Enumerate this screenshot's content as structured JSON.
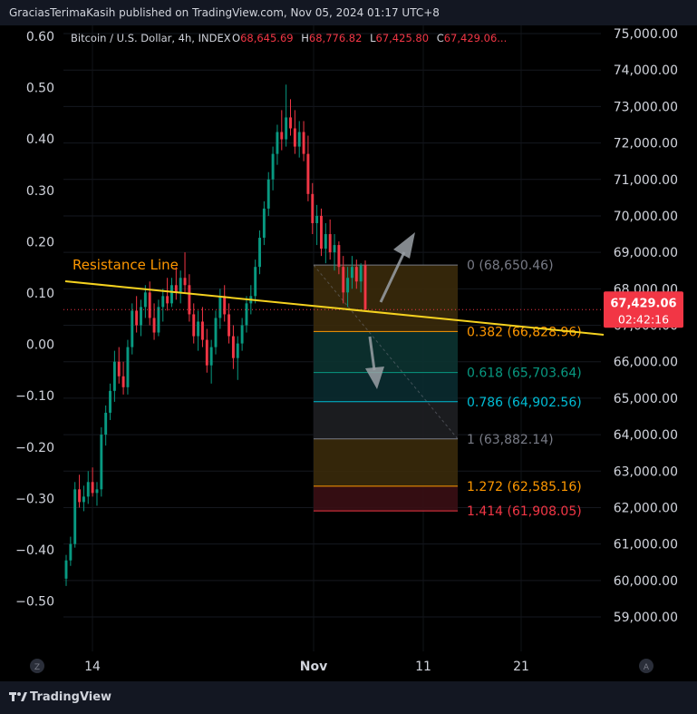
{
  "header": {
    "text": "GraciasTerimaKasih published on TradingView.com, Nov 05, 2024 01:17 UTC+8"
  },
  "symbol": {
    "name": "Bitcoin / U.S. Dollar, 4h, INDEX",
    "o_label": "O",
    "o_value": "68,645.69",
    "h_label": "H",
    "h_value": "68,776.82",
    "l_label": "L",
    "l_value": "67,425.80",
    "c_label": "C",
    "c_value": "67,429.06...",
    "value_color": "#f23645"
  },
  "footer": {
    "brand": "TradingView",
    "z_label": "Z",
    "a_label": "A"
  },
  "chart_data": {
    "type": "candlestick",
    "right_axis": {
      "ticks": [
        "75,000.00",
        "74,000.00",
        "73,000.00",
        "72,000.00",
        "71,000.00",
        "70,000.00",
        "69,000.00",
        "68,000.00",
        "67,000.00",
        "66,000.00",
        "65,000.00",
        "64,000.00",
        "63,000.00",
        "62,000.00",
        "61,000.00",
        "60,000.00",
        "59,000.00"
      ],
      "range": [
        58500,
        75200
      ]
    },
    "left_axis": {
      "ticks": [
        "0.60",
        "0.50",
        "0.40",
        "0.30",
        "0.20",
        "0.10",
        "0.00",
        "−0.10",
        "−0.20",
        "−0.30",
        "−0.40",
        "−0.50"
      ]
    },
    "x_ticks": [
      "14",
      "Nov",
      "11",
      "21"
    ],
    "last_price": {
      "price": "67,429.06",
      "countdown": "02:42:16",
      "value": 67429.06,
      "color": "#f23645"
    },
    "resistance_line": {
      "label": "Resistance Line",
      "color": "#f5d21f",
      "label_color": "#ff9800"
    },
    "fib_levels": [
      {
        "ratio": "0",
        "price": "68,650.46",
        "text": "0 (68,650.46)",
        "value": 68650.46,
        "color": "#787b86"
      },
      {
        "ratio": "0.382",
        "price": "66,828.96",
        "text": "0.382 (66,828.96)",
        "value": 66828.96,
        "color": "#ff9800"
      },
      {
        "ratio": "0.618",
        "price": "65,703.64",
        "text": "0.618 (65,703.64)",
        "value": 65703.64,
        "color": "#089981"
      },
      {
        "ratio": "0.786",
        "price": "64,902.56",
        "text": "0.786 (64,902.56)",
        "value": 64902.56,
        "color": "#00bcd4"
      },
      {
        "ratio": "1",
        "price": "63,882.14",
        "text": "1 (63,882.14)",
        "value": 63882.14,
        "color": "#787b86"
      },
      {
        "ratio": "1.272",
        "price": "62,585.16",
        "text": "1.272 (62,585.16)",
        "value": 62585.16,
        "color": "#ff9800"
      },
      {
        "ratio": "1.414",
        "price": "61,908.05",
        "text": "1.414 (61,908.05)",
        "value": 61908.05,
        "color": "#f23645"
      }
    ],
    "fib_fill_colors": [
      "#3a2a0b",
      "#0c3331",
      "#0a2b30",
      "#1e1f22",
      "#3a2a0b",
      "#3a0e14"
    ],
    "candles": [
      {
        "o": 60050,
        "h": 60700,
        "l": 59850,
        "c": 60550
      },
      {
        "o": 60550,
        "h": 61200,
        "l": 60400,
        "c": 61000
      },
      {
        "o": 61000,
        "h": 62700,
        "l": 60900,
        "c": 62500
      },
      {
        "o": 62500,
        "h": 62900,
        "l": 62000,
        "c": 62150
      },
      {
        "o": 62150,
        "h": 62600,
        "l": 61900,
        "c": 62300
      },
      {
        "o": 62300,
        "h": 63000,
        "l": 62100,
        "c": 62700
      },
      {
        "o": 62700,
        "h": 63100,
        "l": 62300,
        "c": 62400
      },
      {
        "o": 62400,
        "h": 62700,
        "l": 62050,
        "c": 62500
      },
      {
        "o": 62500,
        "h": 64200,
        "l": 62300,
        "c": 64000
      },
      {
        "o": 64000,
        "h": 64800,
        "l": 63700,
        "c": 64600
      },
      {
        "o": 64600,
        "h": 65400,
        "l": 64400,
        "c": 65200
      },
      {
        "o": 65200,
        "h": 66300,
        "l": 64900,
        "c": 66000
      },
      {
        "o": 66000,
        "h": 66400,
        "l": 65400,
        "c": 65600
      },
      {
        "o": 65600,
        "h": 66000,
        "l": 65100,
        "c": 65300
      },
      {
        "o": 65300,
        "h": 66600,
        "l": 65100,
        "c": 66400
      },
      {
        "o": 66400,
        "h": 67600,
        "l": 66200,
        "c": 67400
      },
      {
        "o": 67400,
        "h": 67800,
        "l": 66800,
        "c": 67000
      },
      {
        "o": 67000,
        "h": 67700,
        "l": 66700,
        "c": 67500
      },
      {
        "o": 67500,
        "h": 68100,
        "l": 67200,
        "c": 67900
      },
      {
        "o": 67900,
        "h": 68200,
        "l": 67000,
        "c": 67200
      },
      {
        "o": 67200,
        "h": 67600,
        "l": 66600,
        "c": 66800
      },
      {
        "o": 66800,
        "h": 67700,
        "l": 66700,
        "c": 67500
      },
      {
        "o": 67500,
        "h": 68000,
        "l": 67100,
        "c": 67800
      },
      {
        "o": 67800,
        "h": 68300,
        "l": 67400,
        "c": 67600
      },
      {
        "o": 67600,
        "h": 68300,
        "l": 67500,
        "c": 68100
      },
      {
        "o": 68100,
        "h": 68600,
        "l": 67700,
        "c": 67900
      },
      {
        "o": 67900,
        "h": 68500,
        "l": 67600,
        "c": 68300
      },
      {
        "o": 68300,
        "h": 69000,
        "l": 67900,
        "c": 68100
      },
      {
        "o": 68100,
        "h": 68400,
        "l": 67100,
        "c": 67300
      },
      {
        "o": 67300,
        "h": 67600,
        "l": 66500,
        "c": 66700
      },
      {
        "o": 66700,
        "h": 67400,
        "l": 66300,
        "c": 67100
      },
      {
        "o": 67100,
        "h": 67500,
        "l": 66400,
        "c": 66600
      },
      {
        "o": 66600,
        "h": 66900,
        "l": 65700,
        "c": 65900
      },
      {
        "o": 65900,
        "h": 66600,
        "l": 65400,
        "c": 66400
      },
      {
        "o": 66400,
        "h": 67400,
        "l": 66200,
        "c": 67200
      },
      {
        "o": 67200,
        "h": 68000,
        "l": 66900,
        "c": 67800
      },
      {
        "o": 67800,
        "h": 68100,
        "l": 67100,
        "c": 67300
      },
      {
        "o": 67300,
        "h": 67600,
        "l": 66500,
        "c": 66700
      },
      {
        "o": 66700,
        "h": 67000,
        "l": 65800,
        "c": 66100
      },
      {
        "o": 66100,
        "h": 66700,
        "l": 65500,
        "c": 66500
      },
      {
        "o": 66500,
        "h": 67200,
        "l": 66300,
        "c": 67000
      },
      {
        "o": 67000,
        "h": 67800,
        "l": 66800,
        "c": 67600
      },
      {
        "o": 67600,
        "h": 68100,
        "l": 67300,
        "c": 67800
      },
      {
        "o": 67800,
        "h": 68800,
        "l": 67600,
        "c": 68600
      },
      {
        "o": 68600,
        "h": 69600,
        "l": 68400,
        "c": 69400
      },
      {
        "o": 69400,
        "h": 70400,
        "l": 69200,
        "c": 70200
      },
      {
        "o": 70200,
        "h": 71200,
        "l": 70000,
        "c": 71000
      },
      {
        "o": 71000,
        "h": 71900,
        "l": 70700,
        "c": 71700
      },
      {
        "o": 71700,
        "h": 72500,
        "l": 71400,
        "c": 72300
      },
      {
        "o": 72300,
        "h": 72900,
        "l": 71800,
        "c": 72100
      },
      {
        "o": 72100,
        "h": 73600,
        "l": 71900,
        "c": 72700
      },
      {
        "o": 72700,
        "h": 73200,
        "l": 72200,
        "c": 72400
      },
      {
        "o": 72400,
        "h": 72900,
        "l": 71700,
        "c": 71900
      },
      {
        "o": 71900,
        "h": 72600,
        "l": 71600,
        "c": 72300
      },
      {
        "o": 72300,
        "h": 72600,
        "l": 71500,
        "c": 71700
      },
      {
        "o": 71700,
        "h": 72200,
        "l": 70400,
        "c": 70600
      },
      {
        "o": 70600,
        "h": 70900,
        "l": 69500,
        "c": 69800
      },
      {
        "o": 69800,
        "h": 70300,
        "l": 69200,
        "c": 70000
      },
      {
        "o": 70000,
        "h": 70200,
        "l": 68900,
        "c": 69100
      },
      {
        "o": 69100,
        "h": 69800,
        "l": 68700,
        "c": 69500
      },
      {
        "o": 69500,
        "h": 69900,
        "l": 68800,
        "c": 69000
      },
      {
        "o": 69000,
        "h": 69500,
        "l": 68500,
        "c": 69200
      },
      {
        "o": 69200,
        "h": 69300,
        "l": 68400,
        "c": 68600
      },
      {
        "o": 68600,
        "h": 68900,
        "l": 67600,
        "c": 67900
      },
      {
        "o": 67900,
        "h": 68600,
        "l": 67500,
        "c": 68300
      },
      {
        "o": 68300,
        "h": 68900,
        "l": 68000,
        "c": 68600
      },
      {
        "o": 68600,
        "h": 68800,
        "l": 68000,
        "c": 68200
      },
      {
        "o": 68200,
        "h": 68700,
        "l": 67900,
        "c": 68645
      },
      {
        "o": 68645,
        "h": 68777,
        "l": 67426,
        "c": 67429
      }
    ]
  }
}
